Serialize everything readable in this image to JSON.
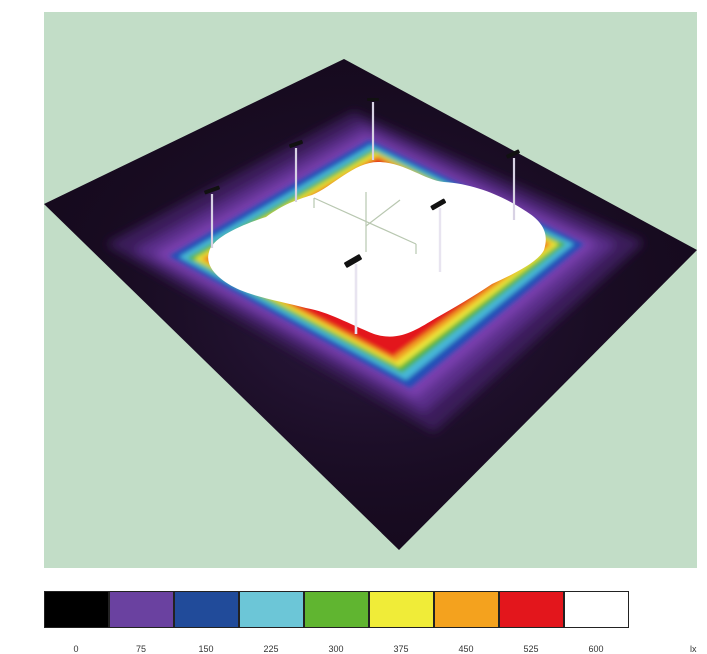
{
  "scene": {
    "background_color": "#c2ddc7",
    "plane_color": "#160a1e",
    "poles": [
      "light-pole",
      "light-pole",
      "light-pole",
      "light-pole",
      "light-pole",
      "light-pole"
    ]
  },
  "legend": {
    "values": [
      "0",
      "75",
      "150",
      "225",
      "300",
      "375",
      "450",
      "525",
      "600"
    ],
    "colors": [
      "#000000",
      "#6a41a0",
      "#214b9a",
      "#6cc6d7",
      "#60b530",
      "#f0ec38",
      "#f4a21e",
      "#e3161c",
      "#ffffff"
    ],
    "unit": "lx"
  }
}
